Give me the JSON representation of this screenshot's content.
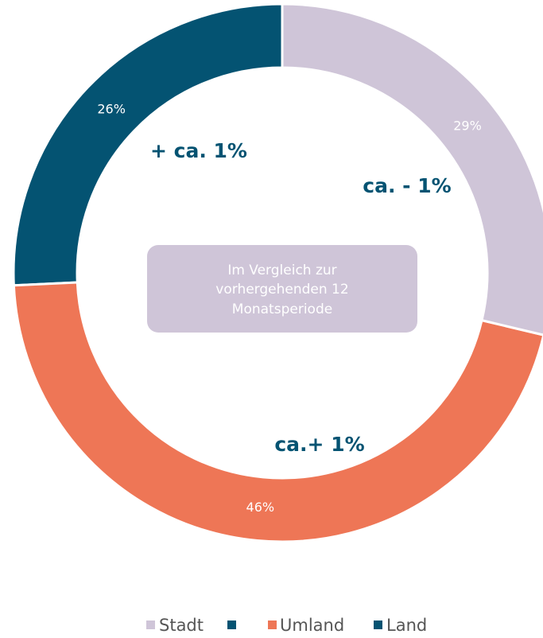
{
  "chart_data": {
    "type": "donut",
    "categories": [
      "Stadt",
      "Umland",
      "Land"
    ],
    "values": [
      29,
      46,
      26
    ],
    "value_labels": [
      "29%",
      "46%",
      "26%"
    ],
    "colors": [
      "#cfc5d8",
      "#ee7656",
      "#045372"
    ],
    "annotations": [
      "+ ca. 1%",
      "ca. - 1%",
      "ca.+ 1%"
    ],
    "center_note": [
      "Im Vergleich zur",
      "vorhergehenden 12",
      "Monatsperiode"
    ]
  }
}
